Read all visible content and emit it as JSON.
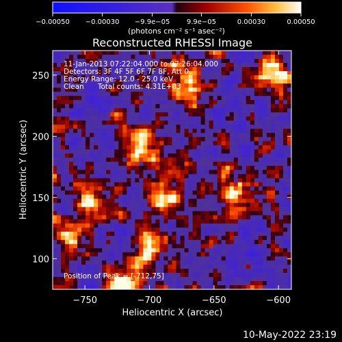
{
  "chart_data": {
    "type": "heatmap",
    "title": "Reconstructed RHESSI Image",
    "xlabel": "Heliocentric X (arcsec)",
    "ylabel": "Heliocentric Y (arcsec)",
    "xlim": [
      -775,
      -590
    ],
    "ylim": [
      75,
      270
    ],
    "x_ticks": [
      -750,
      -700,
      -650,
      -600
    ],
    "x_tick_labels": [
      "−750",
      "−700",
      "−650",
      "−600"
    ],
    "y_ticks": [
      100,
      150,
      200,
      250
    ],
    "y_tick_labels": [
      "100",
      "150",
      "200",
      "250"
    ],
    "colorbar": {
      "range": [
        -0.0005,
        0.0005
      ],
      "ticks": [
        -0.0005,
        -0.0003,
        -9.9e-05,
        9.9e-05,
        0.0003,
        0.0005
      ],
      "tick_labels": [
        "−0.00050",
        "−0.00030",
        "−9.9e−05",
        "9.9e−05",
        "0.00030",
        "0.00050"
      ],
      "unit_label": "(photons cm⁻² s⁻¹ asec⁻²)",
      "colormap": "red-temperature with blue negative"
    },
    "annotations": [
      "11-Jan-2013 07:22:04.000 to 07:26:04.000",
      "Detectors: 3F 4F 5F 6F 7F 8F, Att 0",
      "Energy Range: 12.0 - 25.0 keV",
      "Clean      Total counts: 4.31E+03"
    ],
    "peak_label": "Position of Peak = [-712,75]",
    "peak_position": [
      -712,
      75
    ],
    "bright_regions": [
      {
        "x": -720,
        "y": 80,
        "level": 1.0
      },
      {
        "x": -745,
        "y": 150,
        "level": 0.9
      },
      {
        "x": -710,
        "y": 190,
        "level": 0.85
      },
      {
        "x": -690,
        "y": 150,
        "level": 0.85
      },
      {
        "x": -600,
        "y": 250,
        "level": 0.8
      },
      {
        "x": -630,
        "y": 150,
        "level": 0.75
      },
      {
        "x": -670,
        "y": 245,
        "level": 0.7
      },
      {
        "x": -760,
        "y": 120,
        "level": 0.7
      },
      {
        "x": -700,
        "y": 110,
        "level": 0.65
      }
    ]
  },
  "footer_timestamp": "10-May-2022 23:19"
}
